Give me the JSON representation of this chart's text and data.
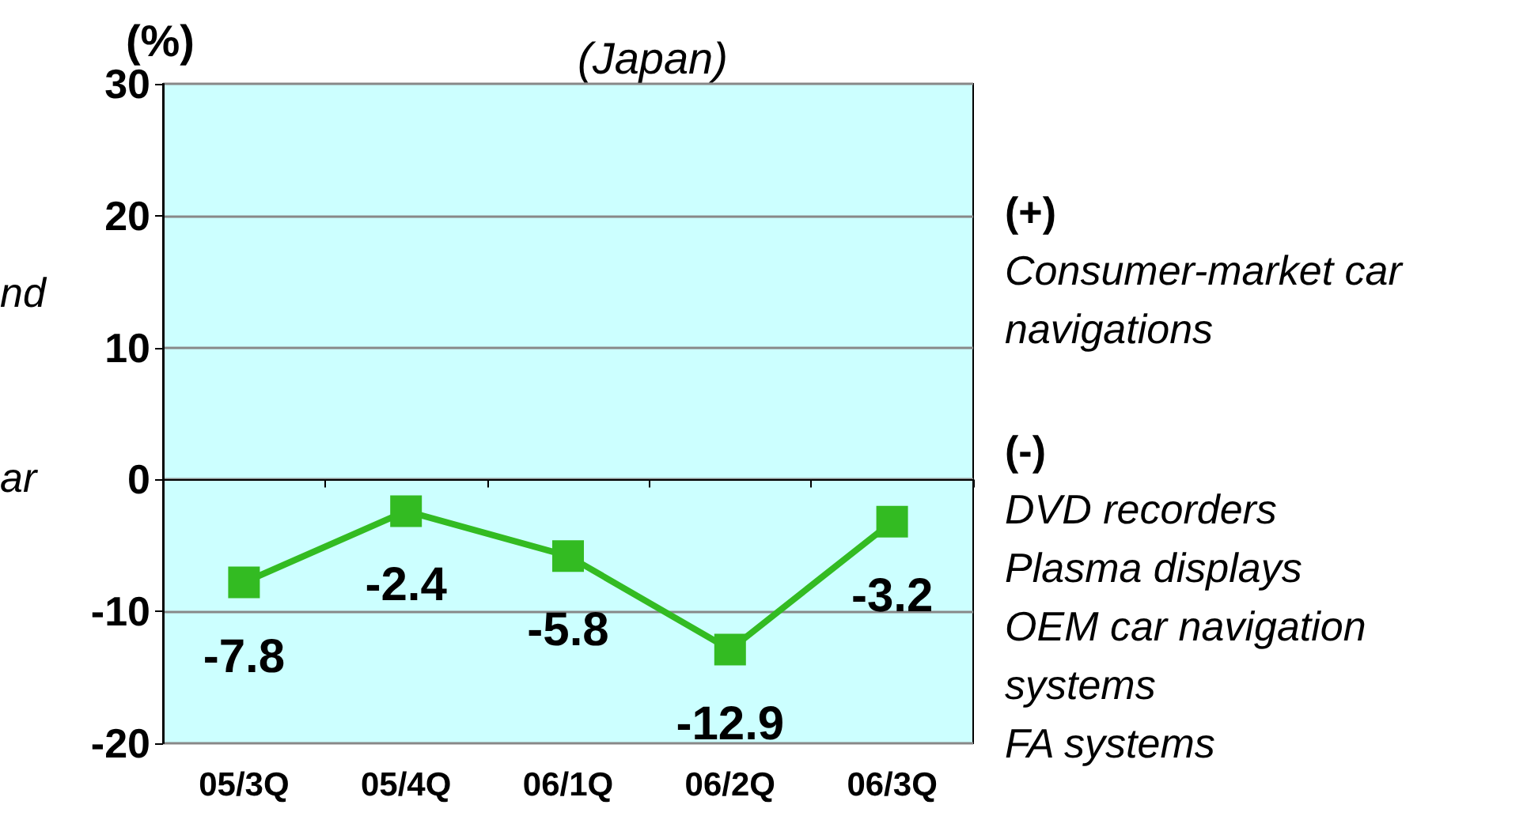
{
  "chart_data": {
    "type": "line",
    "title": "(Japan)",
    "ylabel": "(%)",
    "categories": [
      "05/3Q",
      "05/4Q",
      "06/1Q",
      "06/2Q",
      "06/3Q"
    ],
    "series": [
      {
        "color": "#33bb22",
        "values": [
          -7.8,
          -2.4,
          -5.8,
          -12.9,
          -3.2
        ]
      }
    ],
    "ylim": [
      -20,
      30
    ],
    "yticks": [
      -20,
      -10,
      0,
      10,
      20,
      30
    ],
    "grid": "y",
    "marker": "square",
    "data_labels": true,
    "annotations": [
      "nd",
      "ar",
      "(+)",
      "Consumer-market car navigations",
      "(-)",
      "DVD recorders",
      "Plasma displays",
      "OEM car navigation systems",
      "FA systems"
    ]
  }
}
